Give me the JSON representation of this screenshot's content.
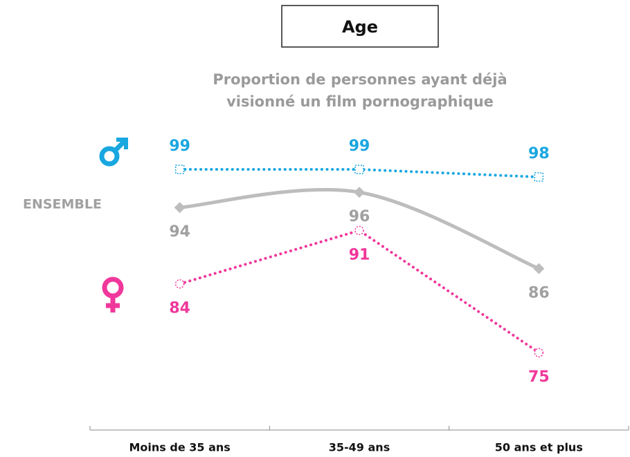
{
  "chart_data": {
    "type": "line",
    "title": "Age",
    "subtitle": [
      "Proportion de personnes ayant déjà",
      "visionné un film pornographique"
    ],
    "categories": [
      "Moins de 35 ans",
      "35-49 ans",
      "50 ans et plus"
    ],
    "series": [
      {
        "color": "#19a7e0",
        "values": [
          99,
          99,
          98
        ]
      },
      {
        "name": "ENSEMBLE",
        "color": "#bdbdbd",
        "values": [
          94,
          96,
          86
        ]
      },
      {
        "color": "#f0379b",
        "values": [
          84,
          91,
          75
        ]
      }
    ]
  }
}
